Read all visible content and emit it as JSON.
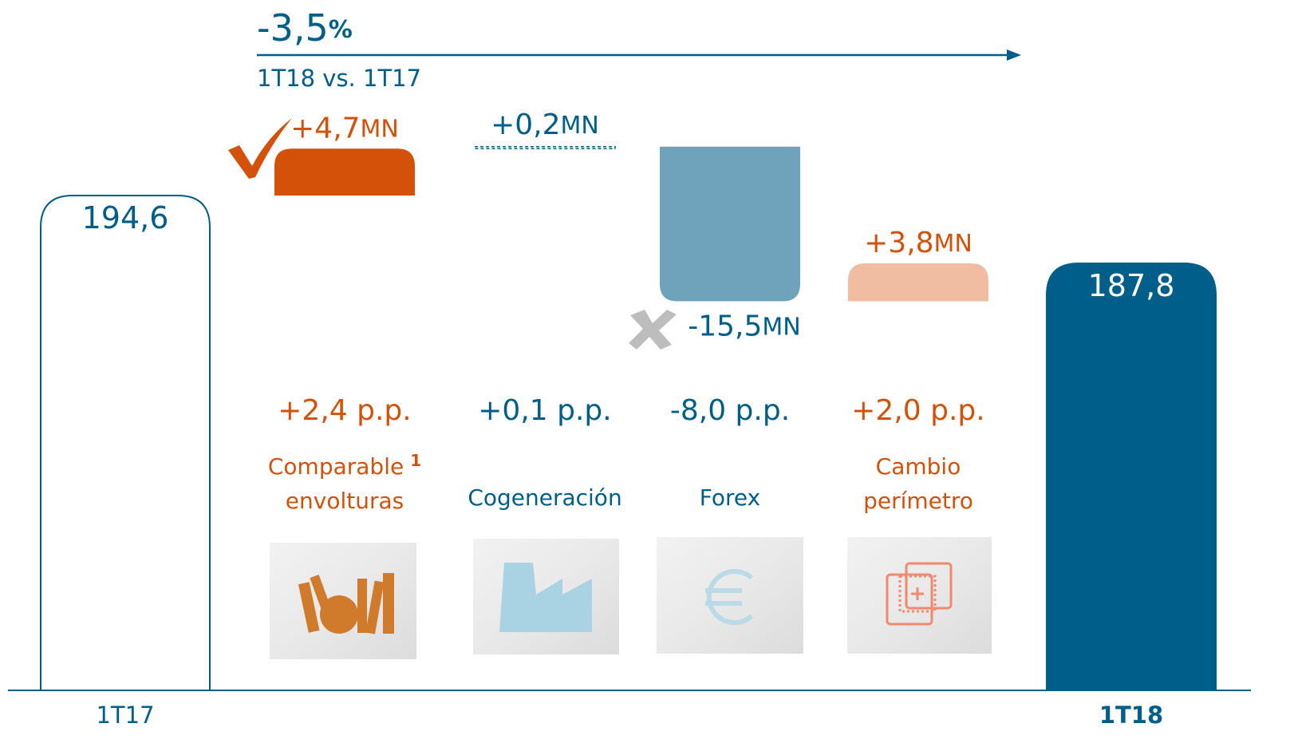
{
  "chart_data": {
    "type": "waterfall",
    "categories": [
      "1T17",
      null,
      null,
      null,
      null,
      "1T18"
    ],
    "values": [
      194.6,
      4.7,
      0.2,
      -15.5,
      3.8,
      187.8
    ],
    "value_labels": [
      "194,6",
      "+4,7",
      "+0,2",
      "-15,5",
      "+3,8",
      "187,8"
    ],
    "unit": "MN",
    "colors": [
      "#ffffff",
      "#d4510a",
      "#ffffff",
      "#6fa3bc",
      "#f0bda3",
      "#005f8a"
    ],
    "label_colors": [
      "#005f8a",
      "#d4510a",
      "#005f8a",
      "#005f8a",
      "#d4510a",
      "#ffffff"
    ],
    "ylim": [
      145,
      200
    ],
    "change": {
      "value_label": "-3,5",
      "unit": "%",
      "caption": "1T18 vs. 1T17"
    },
    "contributions": [
      "+2,4 p.p.",
      "+0,1 p.p.",
      "-8,0 p.p.",
      "+2,0 p.p."
    ],
    "contribution_colors": [
      "#d4510a",
      "#005f8a",
      "#005f8a",
      "#d4510a"
    ],
    "descriptions": [
      [
        "Comparable",
        "envolturas"
      ],
      [
        "Cogeneración"
      ],
      [
        "Forex"
      ],
      [
        "Cambio",
        "perímetro"
      ]
    ],
    "footnote": "1"
  }
}
